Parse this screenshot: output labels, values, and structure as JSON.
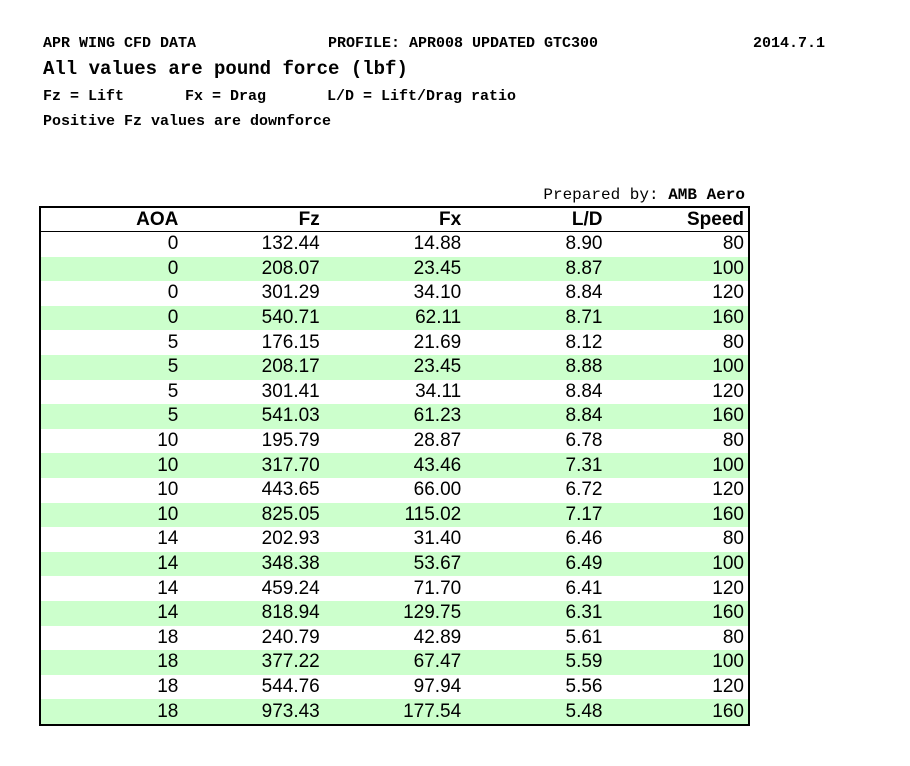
{
  "header": {
    "line1": {
      "left": "APR WING CFD DATA",
      "middle": "PROFILE: APR008 UPDATED GTC300",
      "right": "2014.7.1"
    },
    "title": "All values are pound force (lbf)",
    "legend": [
      "Fz = Lift",
      "Fx = Drag",
      "L/D = Lift/Drag ratio"
    ],
    "note": "Positive Fz values are downforce"
  },
  "prepared": {
    "label": "Prepared by:",
    "name": "AMB Aero"
  },
  "table": {
    "columns": [
      "AOA",
      "Fz",
      "Fx",
      "L/D",
      "Speed"
    ],
    "rows": [
      [
        "0",
        "132.44",
        "14.88",
        "8.90",
        "80"
      ],
      [
        "0",
        "208.07",
        "23.45",
        "8.87",
        "100"
      ],
      [
        "0",
        "301.29",
        "34.10",
        "8.84",
        "120"
      ],
      [
        "0",
        "540.71",
        "62.11",
        "8.71",
        "160"
      ],
      [
        "5",
        "176.15",
        "21.69",
        "8.12",
        "80"
      ],
      [
        "5",
        "208.17",
        "23.45",
        "8.88",
        "100"
      ],
      [
        "5",
        "301.41",
        "34.11",
        "8.84",
        "120"
      ],
      [
        "5",
        "541.03",
        "61.23",
        "8.84",
        "160"
      ],
      [
        "10",
        "195.79",
        "28.87",
        "6.78",
        "80"
      ],
      [
        "10",
        "317.70",
        "43.46",
        "7.31",
        "100"
      ],
      [
        "10",
        "443.65",
        "66.00",
        "6.72",
        "120"
      ],
      [
        "10",
        "825.05",
        "115.02",
        "7.17",
        "160"
      ],
      [
        "14",
        "202.93",
        "31.40",
        "6.46",
        "80"
      ],
      [
        "14",
        "348.38",
        "53.67",
        "6.49",
        "100"
      ],
      [
        "14",
        "459.24",
        "71.70",
        "6.41",
        "120"
      ],
      [
        "14",
        "818.94",
        "129.75",
        "6.31",
        "160"
      ],
      [
        "18",
        "240.79",
        "42.89",
        "5.61",
        "80"
      ],
      [
        "18",
        "377.22",
        "67.47",
        "5.59",
        "100"
      ],
      [
        "18",
        "544.76",
        "97.94",
        "5.56",
        "120"
      ],
      [
        "18",
        "973.43",
        "177.54",
        "5.48",
        "160"
      ]
    ]
  }
}
